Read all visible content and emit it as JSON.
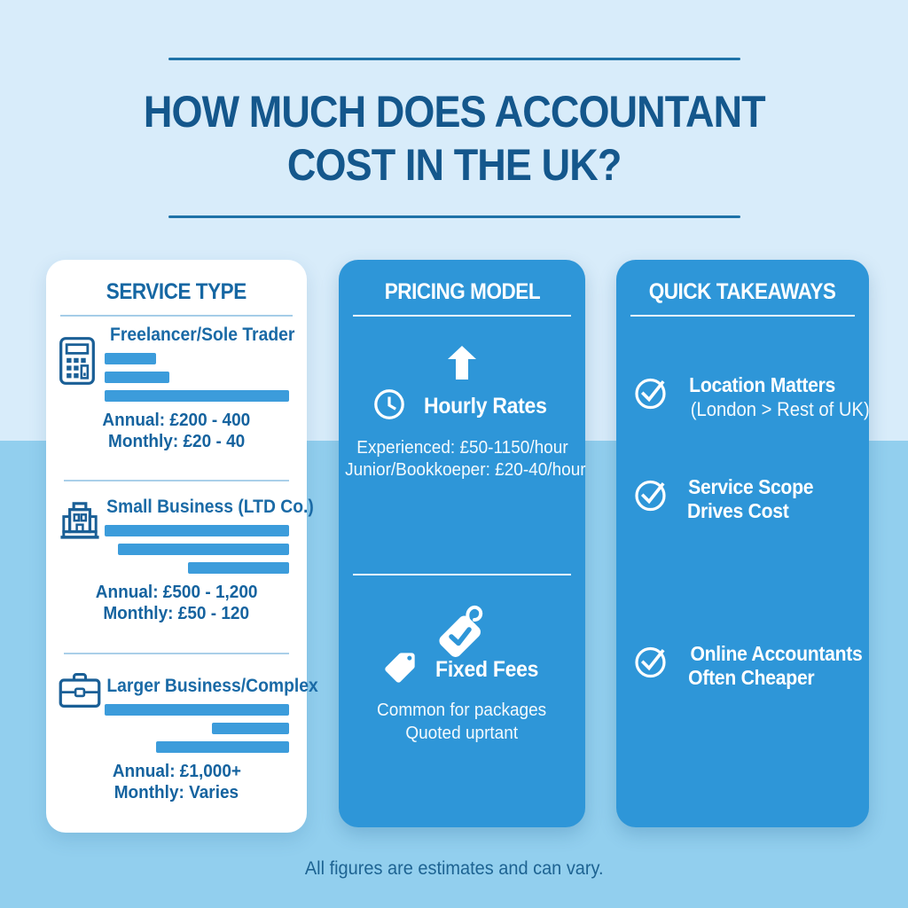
{
  "page": {
    "title_line1": "HOW MUCH DOES ACCOUNTANT",
    "title_line2": "COST IN THE UK?",
    "footer": "All figures are estimates and can vary."
  },
  "colors": {
    "background_top": "#d8ecfa",
    "background_bottom": "#92cfee",
    "card_blue": "#2e96d8",
    "bar_blue": "#3c9cdb",
    "title_text": "#14578c",
    "left_card_text": "#1a6aa6",
    "icon_stroke": "#1a5f96",
    "white": "#ffffff"
  },
  "service_type": {
    "header": "SERVICE TYPE",
    "items": [
      {
        "icon": "calculator-icon",
        "title": "Freelancer/Sole Trader",
        "bars": [
          {
            "indent": 0,
            "width": 28
          },
          {
            "indent": 0,
            "width": 35
          },
          {
            "indent": 0,
            "width": 100
          }
        ],
        "annual": "Annual: £200 - 400",
        "monthly": "Monthly: £20 - 40"
      },
      {
        "icon": "building-icon",
        "title": "Small Business (LTD Co.)",
        "bars": [
          {
            "indent": 0,
            "width": 100
          },
          {
            "indent": 7,
            "width": 93
          },
          {
            "indent": 45,
            "width": 55
          }
        ],
        "annual": "Annual: £500 - 1,200",
        "monthly": "Monthly: £50 - 120"
      },
      {
        "icon": "briefcase-icon",
        "title": "Larger Business/Complex",
        "bars": [
          {
            "indent": 0,
            "width": 100
          },
          {
            "indent": 58,
            "width": 42
          },
          {
            "indent": 28,
            "width": 72
          }
        ],
        "annual": "Annual: £1,000+",
        "monthly": "Monthly: Varies"
      }
    ]
  },
  "pricing_model": {
    "header": "PRICING MODEL",
    "hourly": {
      "icon": "clock-icon",
      "arrow_icon": "arrow-up-icon",
      "title": "Hourly Rates",
      "line1": "Experienced: £50-1150/hour",
      "line2": "Junior/Bookkoeper: £20-40/hour"
    },
    "fixed": {
      "icon": "tag-icon",
      "badge_icon": "tag-check-icon",
      "title": "Fixed Fees",
      "line1": "Common for packages",
      "line2": "Quoted uprtant"
    }
  },
  "quick_takeaways": {
    "header": "QUICK TAKEAWAYS",
    "items": [
      {
        "icon": "check-circle-icon",
        "line1": "Location Matters",
        "line2": "(London > Rest of UK)"
      },
      {
        "icon": "check-circle-icon",
        "line1": "Service Scope",
        "line2": "Drives Cost"
      },
      {
        "icon": "check-circle-icon",
        "line1": "Online Accountants",
        "line2": "Often Cheaper"
      }
    ]
  }
}
